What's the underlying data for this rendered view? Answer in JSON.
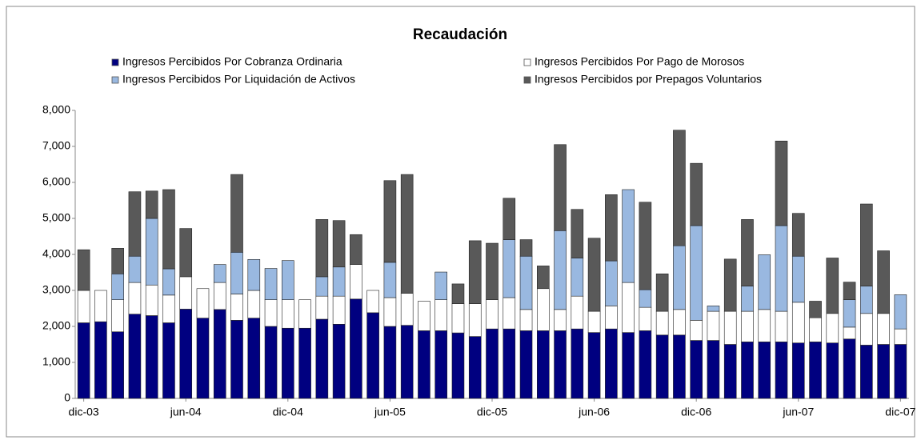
{
  "chart_data": {
    "type": "stacked_bar",
    "title": "Recaudación",
    "categories": [
      "dic-03",
      null,
      null,
      null,
      null,
      null,
      "jun-04",
      null,
      null,
      null,
      null,
      null,
      "dic-04",
      null,
      null,
      null,
      null,
      null,
      "jun-05",
      null,
      null,
      null,
      null,
      null,
      "dic-05",
      null,
      null,
      null,
      null,
      null,
      "jun-06",
      null,
      null,
      null,
      null,
      null,
      "dic-06",
      null,
      null,
      null,
      null,
      null,
      "jun-07",
      null,
      null,
      null,
      null,
      null,
      "dic-07"
    ],
    "series": [
      {
        "name": "Ingresos Percibidos Por Cobranza Ordinaria",
        "color": "#000080",
        "values": [
          2100,
          2130,
          1850,
          2340,
          2300,
          2100,
          2480,
          2230,
          2470,
          2170,
          2230,
          2000,
          1950,
          1950,
          2200,
          2060,
          2760,
          2380,
          2000,
          2030,
          1880,
          1880,
          1820,
          1720,
          1930,
          1930,
          1880,
          1880,
          1880,
          1930,
          1830,
          1930,
          1830,
          1880,
          1760,
          1760,
          1610,
          1610,
          1500,
          1570,
          1570,
          1570,
          1540,
          1570,
          1540,
          1650,
          1480,
          1500,
          1500
        ]
      },
      {
        "name": "Ingresos Percibidos Por Pago de Morosos",
        "color": "#ffffff",
        "values": [
          900,
          870,
          890,
          880,
          850,
          770,
          900,
          820,
          750,
          730,
          770,
          740,
          790,
          790,
          640,
          780,
          960,
          620,
          800,
          890,
          820,
          860,
          810,
          910,
          810,
          870,
          590,
          1170,
          590,
          910,
          590,
          640,
          1390,
          650,
          660,
          710,
          560,
          810,
          920,
          850,
          900,
          850,
          1130,
          670,
          820,
          330,
          880,
          860,
          430
        ]
      },
      {
        "name": "Ingresos Percibidos Por Liquidación de Activos",
        "color": "#99b8e0",
        "values": [
          0,
          0,
          720,
          730,
          1850,
          730,
          0,
          0,
          500,
          1160,
          860,
          870,
          1090,
          0,
          540,
          810,
          0,
          0,
          980,
          0,
          0,
          770,
          0,
          0,
          0,
          1610,
          1480,
          0,
          2190,
          1060,
          0,
          1250,
          2580,
          490,
          0,
          1770,
          2630,
          150,
          0,
          700,
          1520,
          2380,
          1280,
          0,
          0,
          760,
          760,
          0,
          950
        ]
      },
      {
        "name": "Ingresos Percibidos por Prepagos Voluntarios",
        "color": "#595959",
        "values": [
          1130,
          0,
          710,
          1790,
          760,
          2200,
          1340,
          0,
          0,
          2160,
          0,
          0,
          0,
          0,
          1590,
          1290,
          830,
          0,
          2270,
          3300,
          0,
          0,
          550,
          1750,
          1570,
          1150,
          460,
          630,
          2390,
          1350,
          2030,
          1840,
          0,
          2430,
          1040,
          3210,
          1730,
          0,
          1450,
          1850,
          0,
          2350,
          1190,
          460,
          1540,
          490,
          2280,
          1740,
          0
        ]
      }
    ],
    "ylim": [
      0,
      8000
    ],
    "yticks": [
      0,
      {
        "value": 1000,
        "label": "1,000"
      },
      {
        "value": 2000,
        "label": "2,000"
      },
      {
        "value": 3000,
        "label": "3,000"
      },
      {
        "value": 4000,
        "label": "4,000"
      },
      {
        "value": 5000,
        "label": "5,000"
      },
      {
        "value": 6000,
        "label": "6,000"
      },
      {
        "value": 7000,
        "label": "7,000"
      },
      {
        "value": 8000,
        "label": "8,000"
      }
    ],
    "grid": false,
    "legend": "top"
  }
}
